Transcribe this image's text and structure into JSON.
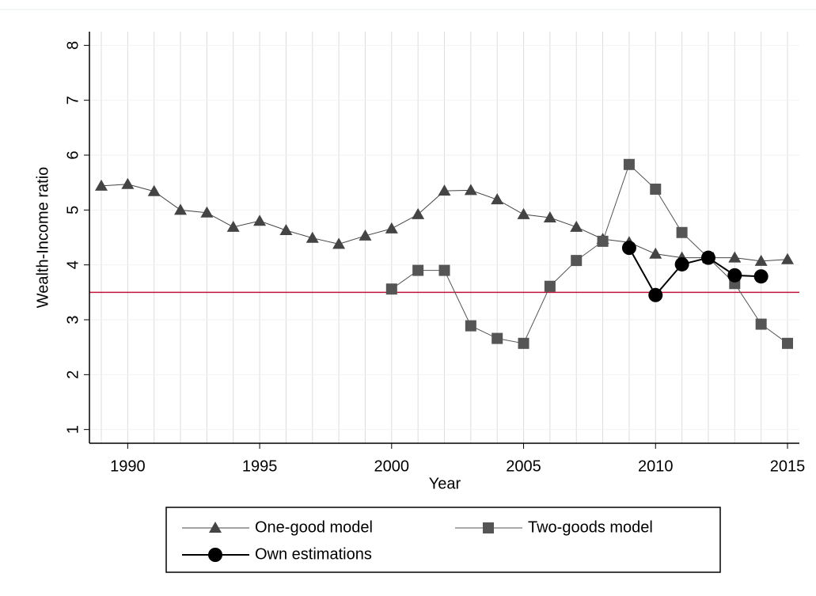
{
  "chart_data": {
    "type": "line",
    "x_label": "Year",
    "y_label": "Wealth-Income ratio",
    "xlim": [
      1988.55,
      2015.45
    ],
    "xticks": [
      1990,
      1995,
      2000,
      2005,
      2010,
      2015
    ],
    "ylim": [
      0.75,
      8.25
    ],
    "yticks": [
      1,
      2,
      3,
      4,
      5,
      6,
      7,
      8
    ],
    "x_grid_lines": [
      1989,
      1990,
      1991,
      1992,
      1993,
      1994,
      1995,
      1996,
      1997,
      1998,
      1999,
      2000,
      2001,
      2002,
      2003,
      2004,
      2005,
      2006,
      2007,
      2008,
      2009,
      2010,
      2011,
      2012,
      2013,
      2014,
      2015
    ],
    "grid": true,
    "hline": {
      "value": 3.5,
      "color": "#c0143c"
    },
    "legend": "bottom",
    "series": [
      {
        "name": "One-good model",
        "color": "#444444",
        "marker": "triangle",
        "x": [
          1989,
          1990,
          1991,
          1992,
          1993,
          1994,
          1995,
          1996,
          1997,
          1998,
          1999,
          2000,
          2001,
          2002,
          2003,
          2004,
          2005,
          2006,
          2007,
          2008,
          2009,
          2010,
          2011,
          2012,
          2013,
          2014,
          2015
        ],
        "values": [
          5.44,
          5.47,
          5.34,
          5.0,
          4.95,
          4.69,
          4.8,
          4.63,
          4.49,
          4.38,
          4.53,
          4.66,
          4.92,
          5.35,
          5.36,
          5.19,
          4.92,
          4.86,
          4.69,
          4.47,
          4.41,
          4.2,
          4.13,
          4.13,
          4.13,
          4.07,
          4.1
        ]
      },
      {
        "name": "Two-goods model",
        "color": "#555555",
        "marker": "square",
        "x": [
          2000,
          2001,
          2002,
          2003,
          2004,
          2005,
          2006,
          2007,
          2008,
          2009,
          2010,
          2011,
          2012,
          2013,
          2014,
          2015
        ],
        "values": [
          3.56,
          3.9,
          3.9,
          2.89,
          2.66,
          2.57,
          3.61,
          4.08,
          4.43,
          5.83,
          5.38,
          4.59,
          4.13,
          3.66,
          2.92,
          2.57
        ]
      },
      {
        "name": "Own estimations",
        "color": "#000000",
        "marker": "circle",
        "x": [
          2009,
          2010,
          2011,
          2012,
          2013,
          2014
        ],
        "values": [
          4.31,
          3.45,
          4.01,
          4.13,
          3.81,
          3.79
        ]
      }
    ]
  }
}
